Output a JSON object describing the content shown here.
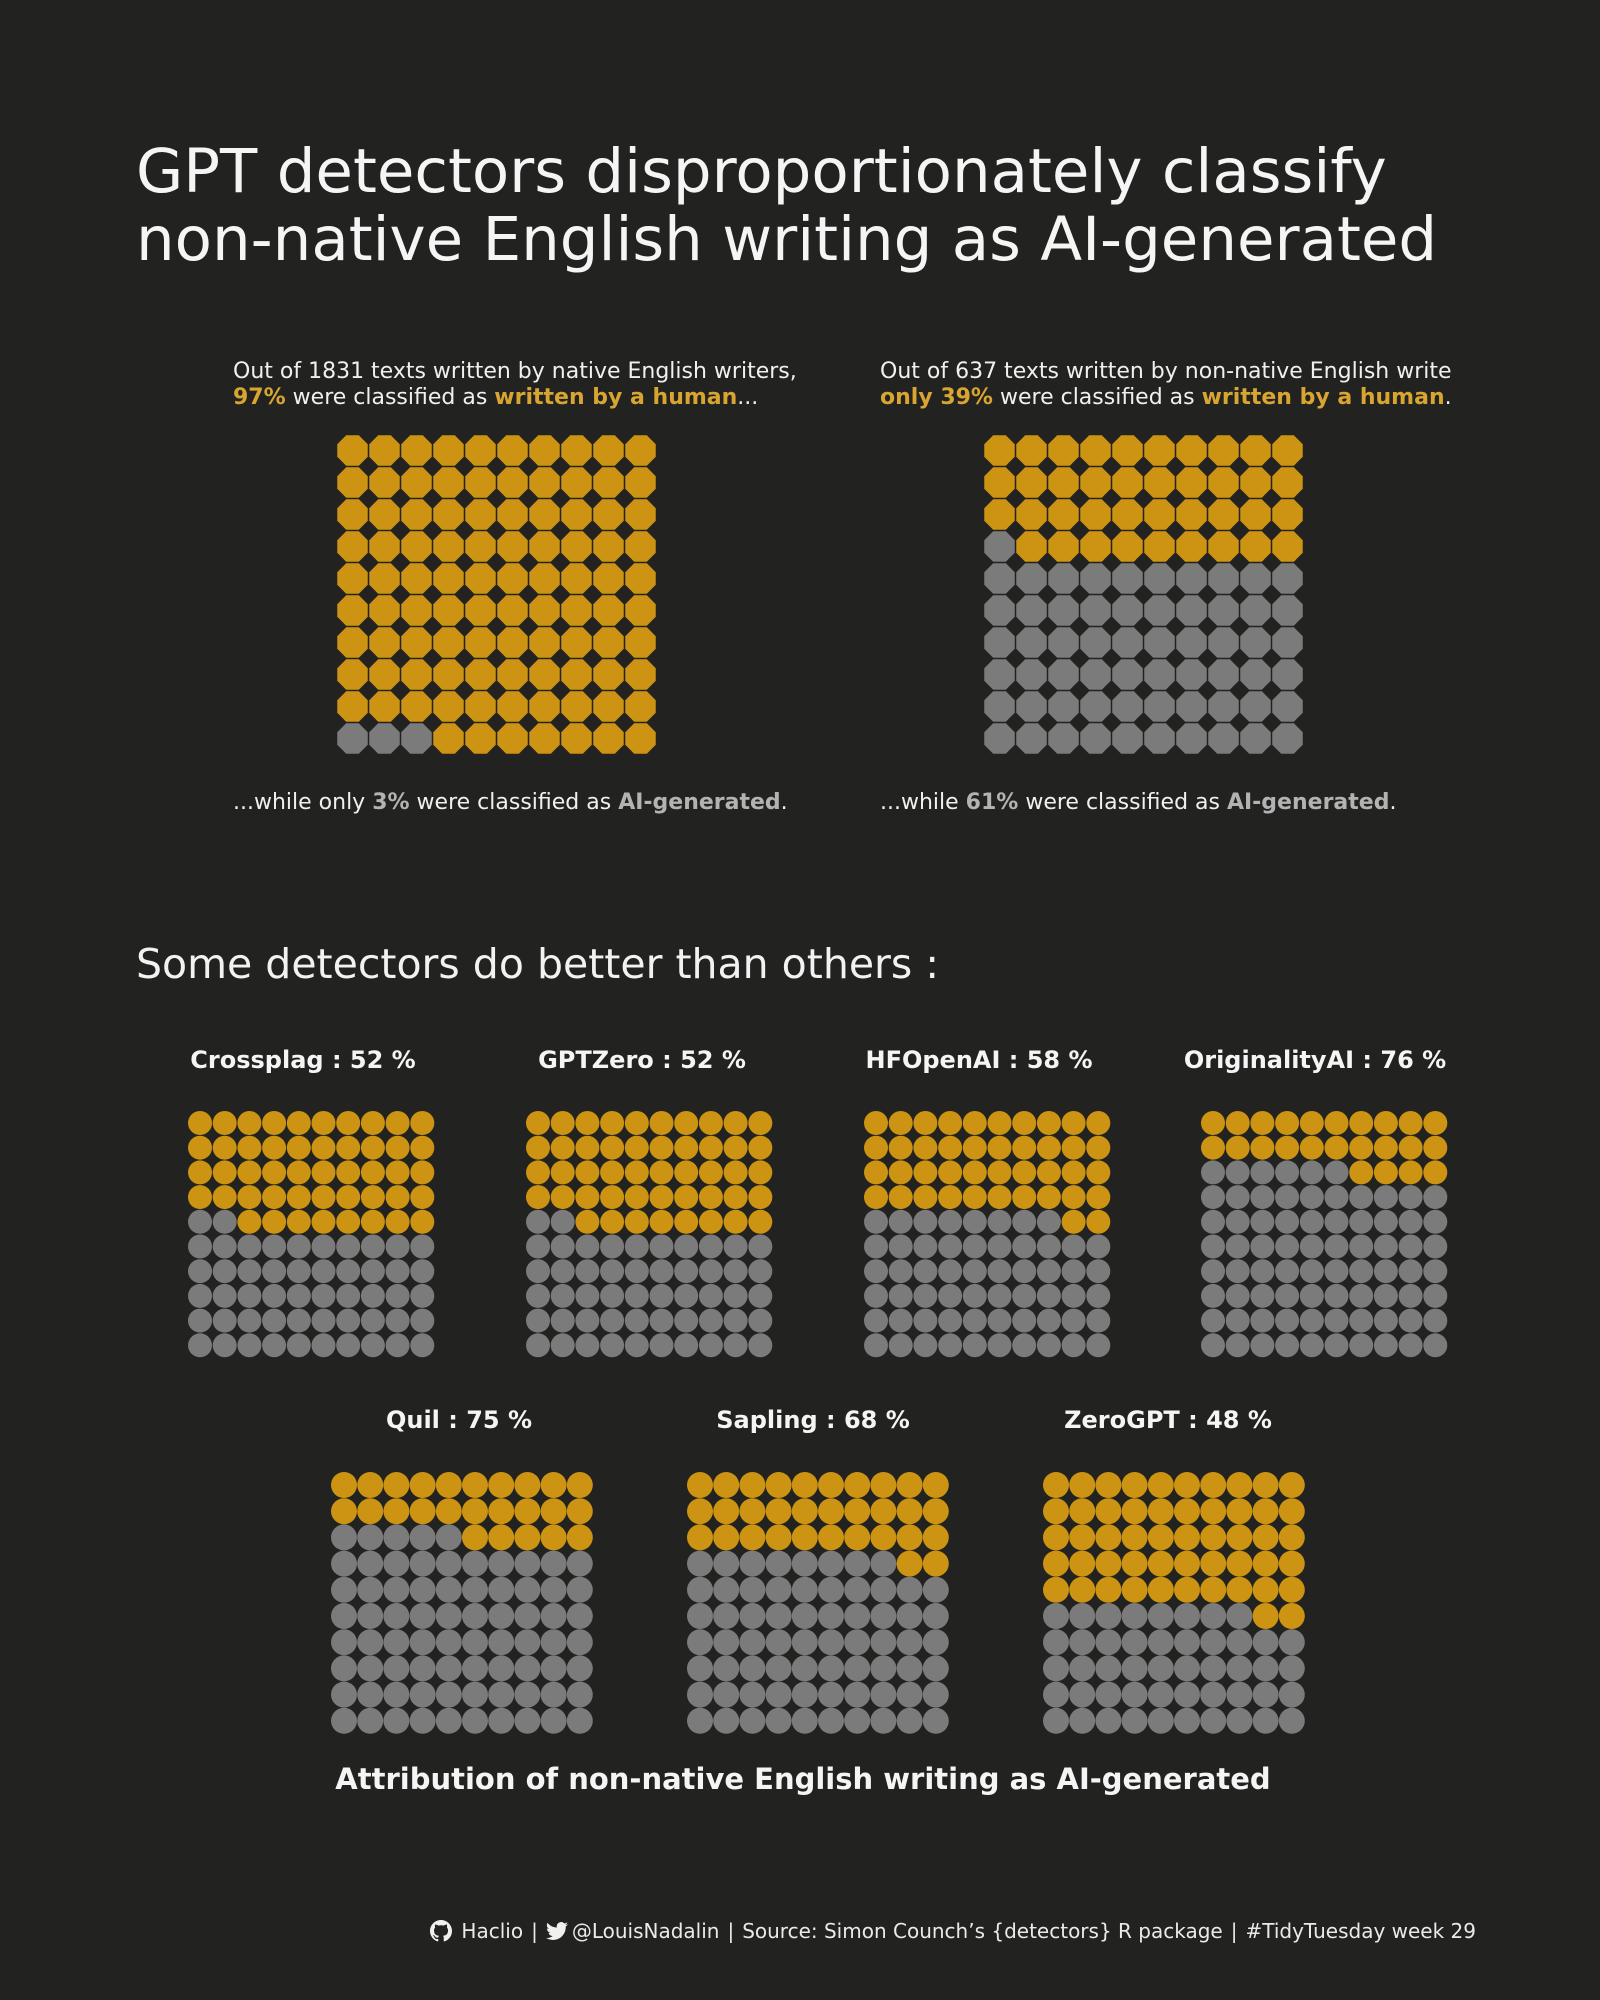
{
  "title": {
    "line1": "GPT detectors disproportionately classify",
    "line2": "non-native English writing as AI-generated"
  },
  "colors": {
    "human": "#cc9412",
    "ai": "#7b7b7b",
    "background": "#222320"
  },
  "native": {
    "top_line1": "Out of 1831 texts written by native English writers,",
    "top_pct": "97%",
    "top_mid": " were classified as ",
    "top_hl": "written by a human",
    "top_end": "...",
    "bottom_start": "...while only ",
    "bottom_pct": "3%",
    "bottom_mid": " were classified as ",
    "bottom_hl": "AI-generated",
    "bottom_end": "."
  },
  "nonnative": {
    "top_line1": "Out of 637 texts written by non-native English write",
    "top_pct": "only 39%",
    "top_mid": " were classified as ",
    "top_hl": "written by a human",
    "top_end": ".",
    "bottom_start": "...while ",
    "bottom_pct": "61%",
    "bottom_mid": " were classified as ",
    "bottom_hl": "AI-generated",
    "bottom_end": "."
  },
  "section_title": "Some detectors do better than others :",
  "detectors_axis_label": "Attribution of non-native English writing as AI-generated",
  "footer": {
    "github": "Haclio",
    "twitter": "@LouisNadalin",
    "source": "Source: Simon Counch’s {detectors} R package",
    "tag": "#TidyTuesday week 29",
    "sep": "|"
  },
  "chart_data": [
    {
      "type": "waffle",
      "name": "native",
      "grid": [
        10,
        10
      ],
      "human_pct": 97,
      "ai_pct": 3
    },
    {
      "type": "waffle",
      "name": "non-native",
      "grid": [
        10,
        10
      ],
      "human_pct": 39,
      "ai_pct": 61
    },
    {
      "type": "waffle",
      "title": "Crossplag : 52 %",
      "detector": "Crossplag",
      "ai_pct": 52,
      "human_pct": 48
    },
    {
      "type": "waffle",
      "title": "GPTZero : 52 %",
      "detector": "GPTZero",
      "ai_pct": 52,
      "human_pct": 48
    },
    {
      "type": "waffle",
      "title": "HFOpenAI : 58 %",
      "detector": "HFOpenAI",
      "ai_pct": 58,
      "human_pct": 42
    },
    {
      "type": "waffle",
      "title": "OriginalityAI : 76 %",
      "detector": "OriginalityAI",
      "ai_pct": 76,
      "human_pct": 24
    },
    {
      "type": "waffle",
      "title": "Quil : 75 %",
      "detector": "Quil",
      "ai_pct": 75,
      "human_pct": 25
    },
    {
      "type": "waffle",
      "title": "Sapling : 68 %",
      "detector": "Sapling",
      "ai_pct": 68,
      "human_pct": 32
    },
    {
      "type": "waffle",
      "title": "ZeroGPT : 48 %",
      "detector": "ZeroGPT",
      "ai_pct": 48,
      "human_pct": 52
    }
  ]
}
